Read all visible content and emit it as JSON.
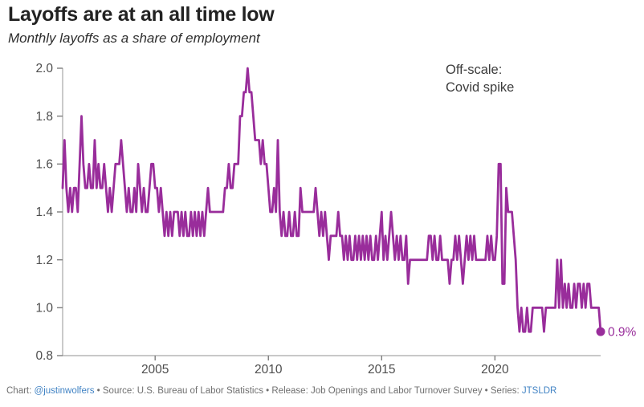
{
  "chart_data": {
    "type": "line",
    "title": "Layoffs are at an all time low",
    "subtitle": "Monthly layoffs as a share of employment",
    "series_name": "Monthly layoffs as a share of employment",
    "frequency": "monthly",
    "x_start": "2000-12",
    "x_end": "2024-09",
    "ylim": [
      0.8,
      2.0
    ],
    "y_ticks": [
      0.8,
      1.0,
      1.2,
      1.4,
      1.6,
      1.8,
      2.0
    ],
    "x_ticks": [
      2005,
      2010,
      2015,
      2020
    ],
    "grid": "off",
    "legend": "none",
    "line_color": "#992d9b",
    "end_label": "0.9%",
    "end_value": 0.9,
    "annotation": {
      "line1": "Off-scale:",
      "line2": "Covid spike"
    },
    "values": [
      1.5,
      1.7,
      1.5,
      1.4,
      1.5,
      1.4,
      1.5,
      1.5,
      1.4,
      1.6,
      1.8,
      1.6,
      1.5,
      1.5,
      1.6,
      1.5,
      1.5,
      1.7,
      1.5,
      1.6,
      1.5,
      1.5,
      1.6,
      1.5,
      1.4,
      1.5,
      1.4,
      1.5,
      1.6,
      1.6,
      1.6,
      1.7,
      1.6,
      1.5,
      1.4,
      1.5,
      1.4,
      1.4,
      1.5,
      1.4,
      1.6,
      1.5,
      1.4,
      1.5,
      1.4,
      1.4,
      1.5,
      1.6,
      1.6,
      1.5,
      1.5,
      1.4,
      1.5,
      1.4,
      1.3,
      1.4,
      1.3,
      1.4,
      1.3,
      1.4,
      1.4,
      1.4,
      1.3,
      1.4,
      1.3,
      1.4,
      1.3,
      1.3,
      1.4,
      1.3,
      1.4,
      1.3,
      1.4,
      1.3,
      1.4,
      1.3,
      1.4,
      1.5,
      1.4,
      1.4,
      1.4,
      1.4,
      1.4,
      1.4,
      1.4,
      1.4,
      1.5,
      1.5,
      1.6,
      1.5,
      1.5,
      1.6,
      1.6,
      1.6,
      1.8,
      1.8,
      1.9,
      1.9,
      2.0,
      1.9,
      1.9,
      1.8,
      1.7,
      1.7,
      1.7,
      1.6,
      1.7,
      1.6,
      1.6,
      1.5,
      1.4,
      1.4,
      1.5,
      1.4,
      1.7,
      1.4,
      1.3,
      1.4,
      1.3,
      1.3,
      1.4,
      1.3,
      1.3,
      1.4,
      1.3,
      1.3,
      1.5,
      1.4,
      1.4,
      1.4,
      1.4,
      1.4,
      1.4,
      1.4,
      1.5,
      1.4,
      1.3,
      1.4,
      1.3,
      1.4,
      1.3,
      1.2,
      1.3,
      1.3,
      1.3,
      1.3,
      1.4,
      1.3,
      1.3,
      1.2,
      1.3,
      1.2,
      1.3,
      1.2,
      1.2,
      1.3,
      1.2,
      1.3,
      1.2,
      1.3,
      1.2,
      1.3,
      1.2,
      1.3,
      1.2,
      1.2,
      1.3,
      1.2,
      1.3,
      1.4,
      1.2,
      1.3,
      1.2,
      1.3,
      1.4,
      1.3,
      1.2,
      1.3,
      1.2,
      1.3,
      1.2,
      1.2,
      1.3,
      1.1,
      1.2,
      1.2,
      1.2,
      1.2,
      1.2,
      1.2,
      1.2,
      1.2,
      1.2,
      1.2,
      1.3,
      1.3,
      1.2,
      1.3,
      1.2,
      1.2,
      1.3,
      1.2,
      1.2,
      1.2,
      1.2,
      1.1,
      1.2,
      1.2,
      1.3,
      1.2,
      1.3,
      1.2,
      1.1,
      1.2,
      1.3,
      1.2,
      1.3,
      1.2,
      1.3,
      1.2,
      1.2,
      1.2,
      1.2,
      1.2,
      1.2,
      1.3,
      1.2,
      1.3,
      1.2,
      1.2,
      1.3,
      1.6,
      1.6,
      1.1,
      1.1,
      1.5,
      1.4,
      1.4,
      1.4,
      1.3,
      1.2,
      1.0,
      0.9,
      1.0,
      0.9,
      0.9,
      1.0,
      0.9,
      0.9,
      1.0,
      1.0,
      1.0,
      1.0,
      1.0,
      1.0,
      0.9,
      1.0,
      1.0,
      1.0,
      1.0,
      1.0,
      1.0,
      1.2,
      1.0,
      1.2,
      1.0,
      1.1,
      1.0,
      1.1,
      1.0,
      1.0,
      1.1,
      1.0,
      1.1,
      1.1,
      1.0,
      1.1,
      1.0,
      1.1,
      1.1,
      1.0,
      1.0,
      1.0,
      1.0,
      1.0,
      0.9
    ]
  },
  "footer": {
    "parts": [
      {
        "text": "Chart: ",
        "link": false
      },
      {
        "text": "@justinwolfers",
        "link": true
      },
      {
        "text": " • Source: U.S. Bureau of Labor Statistics • Release: Job Openings and Labor Turnover Survey • Series: ",
        "link": false
      },
      {
        "text": "JTSLDR",
        "link": true
      }
    ]
  },
  "colors": {
    "accent": "#992d9b",
    "link": "#4183c4",
    "axis": "#a8a8a8",
    "tick_text": "#4d4d4d",
    "title_text": "#222222",
    "annotation_text": "#3d3d3d",
    "footer_text": "#6f6f6f"
  }
}
